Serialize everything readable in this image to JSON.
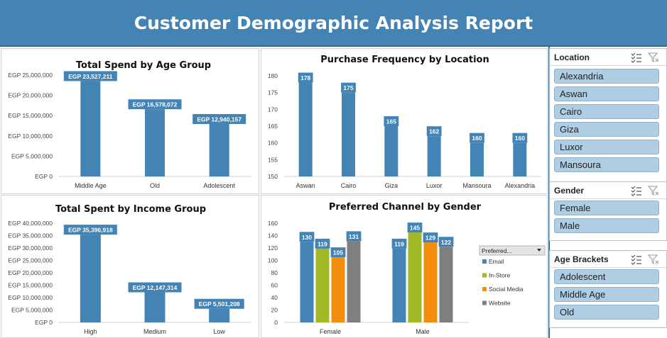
{
  "header": {
    "title": "Customer Demographic Analysis Report"
  },
  "colors": {
    "bar": "#4384b4",
    "email": "#4384b4",
    "instore": "#a3b825",
    "social": "#f28e0c",
    "website": "#7f7f7f",
    "label_bg": "#4384b4"
  },
  "chart_data": [
    {
      "id": "age",
      "type": "bar",
      "title": "Total Spend by Age Group",
      "categories": [
        "Middle Age",
        "Old",
        "Adolescent"
      ],
      "values": [
        23527211,
        16578072,
        12940157
      ],
      "data_labels": [
        "EGP 23,527,211",
        "EGP 16,578,072",
        "EGP 12,940,157"
      ],
      "ylim": [
        0,
        25000000
      ],
      "yticks": [
        0,
        5000000,
        10000000,
        15000000,
        20000000,
        25000000
      ],
      "ytick_labels": [
        "EGP 0",
        "EGP 5,000,000",
        "EGP 10,000,000",
        "EGP 15,000,000",
        "EGP 20,000,000",
        "EGP 25,000,000"
      ],
      "grid": false
    },
    {
      "id": "location",
      "type": "bar",
      "title": "Purchase Frequency by Location",
      "categories": [
        "Aswan",
        "Cairo",
        "Giza",
        "Luxor",
        "Mansoura",
        "Alexandria"
      ],
      "values": [
        178,
        175,
        165,
        162,
        160,
        160
      ],
      "data_labels": [
        "178",
        "175",
        "165",
        "162",
        "160",
        "160"
      ],
      "ylim": [
        150,
        180
      ],
      "yticks": [
        150,
        155,
        160,
        165,
        170,
        175,
        180
      ],
      "ytick_labels": [
        "150",
        "155",
        "160",
        "165",
        "170",
        "175",
        "180"
      ],
      "grid": false
    },
    {
      "id": "income",
      "type": "bar",
      "title": "Total Spent by Income Group",
      "categories": [
        "High",
        "Medium",
        "Low"
      ],
      "values": [
        35396918,
        12147314,
        5501208
      ],
      "data_labels": [
        "EGP 35,396,918",
        "EGP 12,147,314",
        "EGP 5,501,208"
      ],
      "ylim": [
        0,
        40000000
      ],
      "yticks": [
        0,
        5000000,
        10000000,
        15000000,
        20000000,
        25000000,
        30000000,
        35000000,
        40000000
      ],
      "ytick_labels": [
        "EGP 0",
        "EGP 5,000,000",
        "EGP 10,000,000",
        "EGP 15,000,000",
        "EGP 20,000,000",
        "EGP 25,000,000",
        "EGP 30,000,000",
        "EGP 35,000,000",
        "EGP 40,000,000"
      ],
      "grid": false
    },
    {
      "id": "channel",
      "type": "bar",
      "title": "Preferred Channel by Gender",
      "categories": [
        "Female",
        "Male"
      ],
      "series": [
        {
          "name": "Email",
          "values": [
            130,
            119
          ]
        },
        {
          "name": "In-Store",
          "values": [
            119,
            145
          ]
        },
        {
          "name": "Social Media",
          "values": [
            105,
            129
          ]
        },
        {
          "name": "Website",
          "values": [
            131,
            122
          ]
        }
      ],
      "ylim": [
        0,
        160
      ],
      "yticks": [
        0,
        20,
        40,
        60,
        80,
        100,
        120,
        140,
        160
      ],
      "ytick_labels": [
        "0",
        "20",
        "40",
        "60",
        "80",
        "100",
        "120",
        "140",
        "160"
      ],
      "legend": {
        "placement": "right",
        "filter_label": "Preferred..."
      },
      "grid": false
    }
  ],
  "slicers": [
    {
      "id": "location",
      "title": "Location",
      "items": [
        "Alexandria",
        "Aswan",
        "Cairo",
        "Giza",
        "Luxor",
        "Mansoura"
      ]
    },
    {
      "id": "gender",
      "title": "Gender",
      "items": [
        "Female",
        "Male"
      ]
    },
    {
      "id": "age",
      "title": "Age Brackets",
      "items": [
        "Adolescent",
        "Middle Age",
        "Old"
      ]
    }
  ]
}
